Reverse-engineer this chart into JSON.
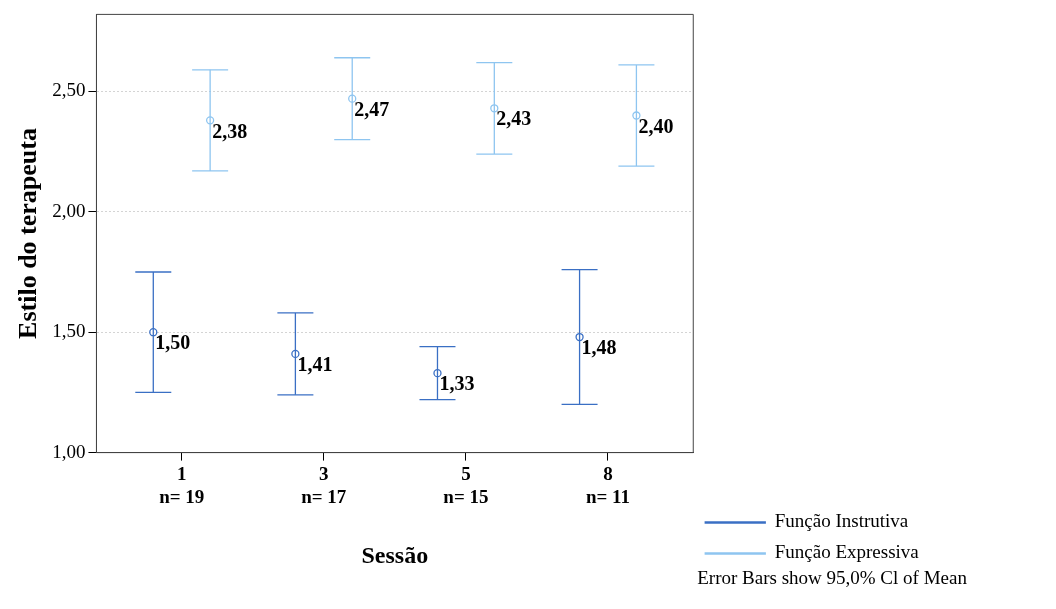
{
  "chart_data": {
    "type": "scatter",
    "xlabel": "Sessão",
    "ylabel": "Estilo do terapeuta",
    "categories": [
      "1\nn= 19",
      "3\nn= 17",
      "5\nn= 15",
      "8\nn= 11"
    ],
    "series": [
      {
        "name": "Função Instrutiva",
        "color": "#3a6fc4",
        "values": [
          1.5,
          1.41,
          1.33,
          1.48
        ],
        "errors": [
          0.25,
          0.17,
          0.11,
          0.28
        ],
        "value_labels": [
          "1,50",
          "1,41",
          "1,33",
          "1,48"
        ]
      },
      {
        "name": "Função Expressiva",
        "color": "#8ec5f0",
        "values": [
          2.38,
          2.47,
          2.43,
          2.4
        ],
        "errors": [
          0.21,
          0.17,
          0.19,
          0.21
        ],
        "value_labels": [
          "2,38",
          "2,47",
          "2,43",
          "2,40"
        ]
      }
    ],
    "ylim": [
      1,
      2.82
    ],
    "yticks": [
      {
        "value": 1,
        "label": "1,00"
      },
      {
        "value": 1.5,
        "label": "1,50"
      },
      {
        "value": 2,
        "label": "2,00"
      },
      {
        "value": 2.5,
        "label": "2,50"
      }
    ],
    "grid": "y",
    "legend": "bottom right",
    "marker": "circle",
    "annotations": [
      "Error Bars show 95,0% Cl of Mean"
    ]
  }
}
